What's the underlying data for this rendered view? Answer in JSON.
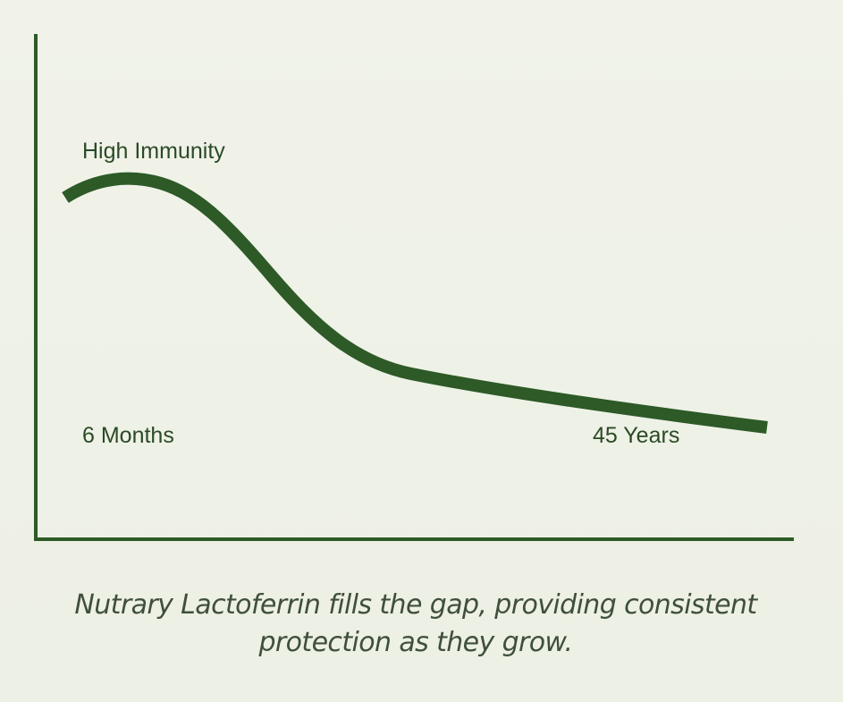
{
  "chart_data": {
    "type": "line",
    "title": "",
    "xlabel": "",
    "ylabel": "",
    "annotations": {
      "peak_label": "High Immunity",
      "start_label": "6 Months",
      "end_label": "45 Years"
    },
    "series": [
      {
        "values_description_free": true,
        "x": [
          0.0,
          0.08,
          0.25,
          0.45,
          0.65,
          1.0
        ],
        "y": [
          0.93,
          1.0,
          0.75,
          0.3,
          0.2,
          0.05
        ]
      }
    ],
    "colors": {
      "line": "#2d5a27",
      "axis": "#2d5a27"
    },
    "grid": false,
    "legend": "none"
  },
  "caption": {
    "line1": "Nutrary Lactoferrin fills the gap, providing consistent",
    "line2": "protection as they grow."
  }
}
